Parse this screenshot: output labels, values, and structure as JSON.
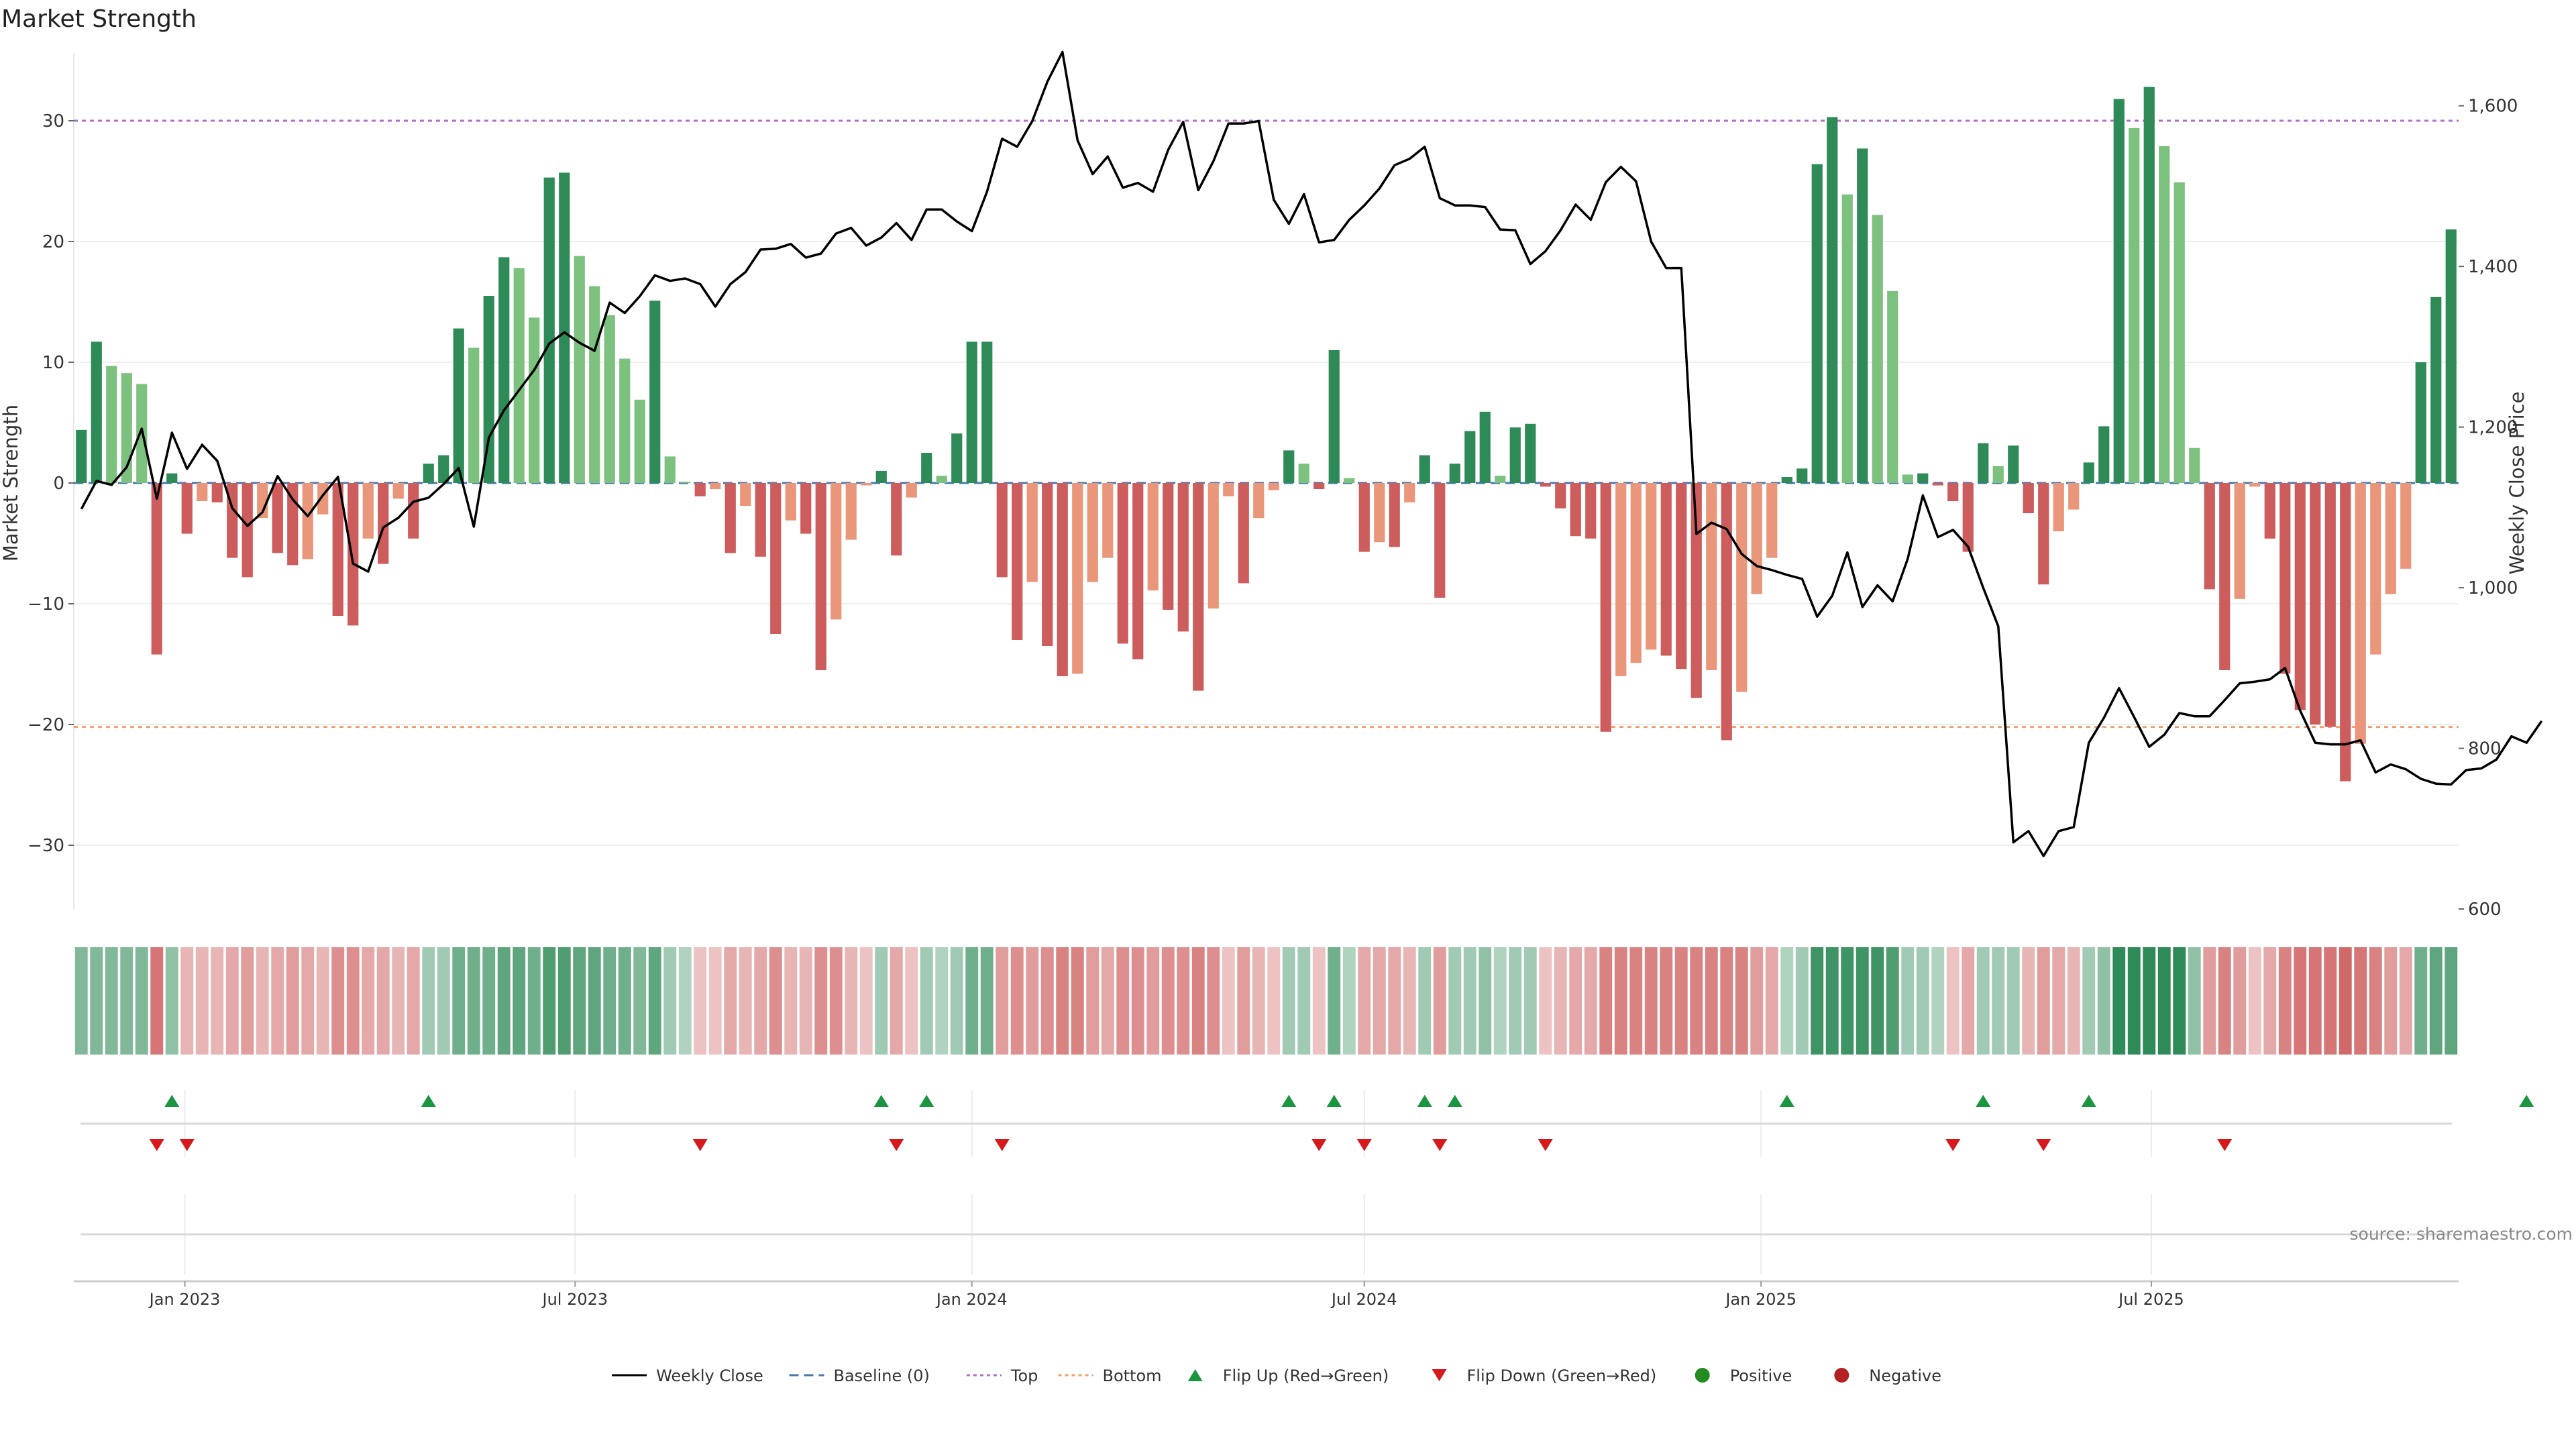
{
  "chart_data": {
    "type": "bar",
    "title": "Market Strength",
    "ylabel_left": "Market Strength",
    "ylabel_right": "Weekly Close Price",
    "source": "source: sharemaestro.com",
    "ylim": [
      -35,
      36
    ],
    "y2lim": [
      600,
      1700
    ],
    "y_ticks": [
      30,
      20,
      10,
      0,
      -10,
      -20,
      -30
    ],
    "y2_ticks": [
      1600,
      1400,
      1200,
      1000,
      800,
      600
    ],
    "y2_tick_labels": [
      "1,600",
      "1,400",
      "1,200",
      "1,000",
      "800",
      "600"
    ],
    "x_start": "2022-11-14",
    "x_step_days": 7,
    "x_ticks": [
      {
        "date": "2023-01-01",
        "label": "Jan 2023"
      },
      {
        "date": "2023-07-01",
        "label": "Jul 2023"
      },
      {
        "date": "2024-01-01",
        "label": "Jan 2024"
      },
      {
        "date": "2024-07-01",
        "label": "Jul 2024"
      },
      {
        "date": "2025-01-01",
        "label": "Jan 2025"
      },
      {
        "date": "2025-07-01",
        "label": "Jul 2025"
      }
    ],
    "reference_lines": [
      {
        "name": "Top",
        "value": 30,
        "color": "#b070c8"
      },
      {
        "name": "Bottom",
        "value": -20.2,
        "color": "#f0a070"
      },
      {
        "name": "Baseline (0)",
        "value": 0,
        "color": "#4a78b0"
      }
    ],
    "market_strength": [
      4.4,
      11.7,
      9.7,
      9.1,
      8.2,
      -14.2,
      0.8,
      -4.2,
      -1.5,
      -1.6,
      -6.2,
      -7.8,
      -2.9,
      -5.8,
      -6.8,
      -6.3,
      -2.6,
      -11,
      -11.8,
      -4.6,
      -6.7,
      -1.3,
      -4.6,
      1.6,
      2.3,
      12.8,
      11.2,
      15.5,
      18.7,
      17.8,
      13.7,
      25.3,
      25.7,
      18.8,
      16.3,
      13.9,
      10.3,
      6.9,
      15.1,
      2.2,
      0.1,
      -1.1,
      -0.5,
      -5.8,
      -1.9,
      -6.1,
      -12.5,
      -3.1,
      -4.2,
      -15.5,
      -11.3,
      -4.7,
      -0.2,
      1,
      -6,
      -1.2,
      2.5,
      0.6,
      4.1,
      11.7,
      11.7,
      -7.8,
      -13,
      -8.2,
      -13.5,
      -16,
      -15.8,
      -8.2,
      -6.2,
      -13.3,
      -14.6,
      -8.9,
      -10.5,
      -12.3,
      -17.2,
      -10.4,
      -1.1,
      -8.3,
      -2.9,
      -0.6,
      2.7,
      1.6,
      -0.5,
      11,
      0.4,
      -5.7,
      -4.9,
      -5.3,
      -1.6,
      2.3,
      -9.5,
      1.6,
      4.3,
      5.9,
      0.6,
      4.6,
      4.9,
      -0.3,
      -2.1,
      -4.4,
      -4.6,
      -20.6,
      -16,
      -14.9,
      -13.8,
      -14.3,
      -15.4,
      -17.8,
      -15.5,
      -21.3,
      -17.3,
      -9.2,
      -6.2,
      0.5,
      1.2,
      26.4,
      30.3,
      23.9,
      27.7,
      22.2,
      15.9,
      0.7,
      0.8,
      -0.2,
      -1.5,
      -5.7,
      3.3,
      1.4,
      3.1,
      -2.5,
      -8.4,
      -4,
      -2.2,
      1.7,
      4.7,
      31.8,
      29.4,
      32.8,
      27.9,
      24.9,
      2.9,
      -8.8,
      -15.5,
      -9.6,
      -0.3,
      -4.6,
      -15.8,
      -18.8,
      -20,
      -20.2,
      -24.7,
      -21.6,
      -14.2,
      -9.2,
      -7.1,
      10,
      15.4,
      21
    ],
    "weekly_close": [
      1098,
      1133,
      1128,
      1150,
      1198,
      1111,
      1193,
      1148,
      1178,
      1158,
      1099,
      1077,
      1094,
      1139,
      1110,
      1089,
      1115,
      1138,
      1030,
      1020,
      1075,
      1087,
      1107,
      1112,
      1129,
      1149,
      1076,
      1187,
      1221,
      1246,
      1271,
      1304,
      1318,
      1305,
      1295,
      1355,
      1342,
      1363,
      1389,
      1382,
      1385,
      1378,
      1350,
      1378,
      1393,
      1421,
      1422,
      1428,
      1411,
      1416,
      1441,
      1448,
      1426,
      1436,
      1454,
      1433,
      1471,
      1471,
      1456,
      1444,
      1493,
      1559,
      1549,
      1581,
      1630,
      1667,
      1557,
      1515,
      1537,
      1498,
      1504,
      1493,
      1545,
      1580,
      1495,
      1531,
      1578,
      1578,
      1581,
      1483,
      1453,
      1490,
      1430,
      1433,
      1458,
      1476,
      1497,
      1526,
      1534,
      1549,
      1485,
      1476,
      1476,
      1474,
      1446,
      1445,
      1403,
      1419,
      1445,
      1477,
      1458,
      1505,
      1524,
      1506,
      1431,
      1398,
      1398,
      1067,
      1081,
      1073,
      1042,
      1027,
      1022,
      1016,
      1011,
      964,
      990,
      1044,
      976,
      1003,
      983,
      1036,
      1115,
      1063,
      1072,
      1051,
      1000,
      952,
      683,
      697,
      666,
      697,
      702,
      807,
      838,
      875,
      839,
      802,
      817,
      844,
      840,
      840,
      860,
      881,
      883,
      886,
      900,
      847,
      807,
      805,
      805,
      810,
      770,
      780,
      774,
      762,
      756,
      755,
      773,
      775,
      786,
      815,
      807,
      834
    ],
    "heat_strip": [
      0.5,
      0.5,
      0.5,
      0.5,
      0.5,
      -0.8,
      0.4,
      -0.3,
      -0.3,
      -0.3,
      -0.4,
      -0.5,
      -0.3,
      -0.4,
      -0.5,
      -0.4,
      -0.3,
      -0.6,
      -0.6,
      -0.4,
      -0.4,
      -0.3,
      -0.4,
      0.3,
      0.3,
      0.6,
      0.6,
      0.6,
      0.7,
      0.7,
      0.6,
      0.8,
      0.8,
      0.7,
      0.7,
      0.6,
      0.6,
      0.5,
      0.7,
      0.3,
      0.2,
      -0.2,
      -0.2,
      -0.4,
      -0.3,
      -0.4,
      -0.6,
      -0.3,
      -0.3,
      -0.6,
      -0.6,
      -0.3,
      -0.2,
      0.3,
      -0.4,
      -0.2,
      0.3,
      0.2,
      0.3,
      0.6,
      0.6,
      -0.5,
      -0.6,
      -0.5,
      -0.6,
      -0.7,
      -0.7,
      -0.5,
      -0.4,
      -0.6,
      -0.6,
      -0.5,
      -0.6,
      -0.6,
      -0.7,
      -0.6,
      -0.2,
      -0.5,
      -0.3,
      -0.2,
      0.3,
      0.3,
      -0.2,
      0.6,
      0.2,
      -0.4,
      -0.4,
      -0.4,
      -0.3,
      0.3,
      -0.5,
      0.3,
      0.3,
      0.4,
      0.2,
      0.3,
      0.3,
      -0.2,
      -0.3,
      -0.4,
      -0.4,
      -0.7,
      -0.7,
      -0.7,
      -0.7,
      -0.7,
      -0.7,
      -0.7,
      -0.7,
      -0.7,
      -0.7,
      -0.5,
      -0.4,
      0.2,
      0.3,
      0.9,
      0.9,
      0.9,
      0.9,
      0.9,
      0.8,
      0.3,
      0.3,
      0.2,
      -0.2,
      -0.4,
      0.3,
      0.3,
      0.3,
      -0.3,
      -0.5,
      -0.4,
      -0.3,
      0.3,
      0.4,
      1,
      1,
      1,
      1,
      1,
      0.4,
      -0.5,
      -0.7,
      -0.5,
      -0.2,
      -0.4,
      -0.7,
      -0.8,
      -0.8,
      -0.8,
      -0.9,
      -0.8,
      -0.7,
      -0.5,
      -0.4,
      0.6,
      0.7,
      0.7
    ],
    "flip_up_idx": [
      6,
      23,
      53,
      56,
      80,
      83,
      89,
      91,
      113,
      126,
      133,
      162
    ],
    "flip_down_idx": [
      5,
      7,
      41,
      54,
      61,
      82,
      85,
      90,
      97,
      124,
      130,
      142
    ],
    "colors": {
      "pos_strong": "#2e8b57",
      "pos_weak": "#7dc17f",
      "neg_strong": "#cd5c5c",
      "neg_weak": "#e9967a",
      "price_line": "#000000",
      "flip_up": "#1a9641",
      "flip_down": "#d7191c",
      "positive": "#228b22",
      "negative": "#b22222"
    },
    "legend": [
      {
        "label": "Weekly Close",
        "kind": "line-solid",
        "color": "#000000"
      },
      {
        "label": "Baseline (0)",
        "kind": "line-dash",
        "color": "#4a78b0"
      },
      {
        "label": "Top",
        "kind": "line-dot",
        "color": "#b070c8"
      },
      {
        "label": "Bottom",
        "kind": "line-dot",
        "color": "#f0a070"
      },
      {
        "label": "Flip Up (Red→Green)",
        "kind": "triangle-up",
        "color": "#1a9641"
      },
      {
        "label": "Flip Down (Green→Red)",
        "kind": "triangle-down",
        "color": "#d7191c"
      },
      {
        "label": "Positive",
        "kind": "circle",
        "color": "#228b22"
      },
      {
        "label": "Negative",
        "kind": "circle",
        "color": "#b22222"
      }
    ]
  }
}
